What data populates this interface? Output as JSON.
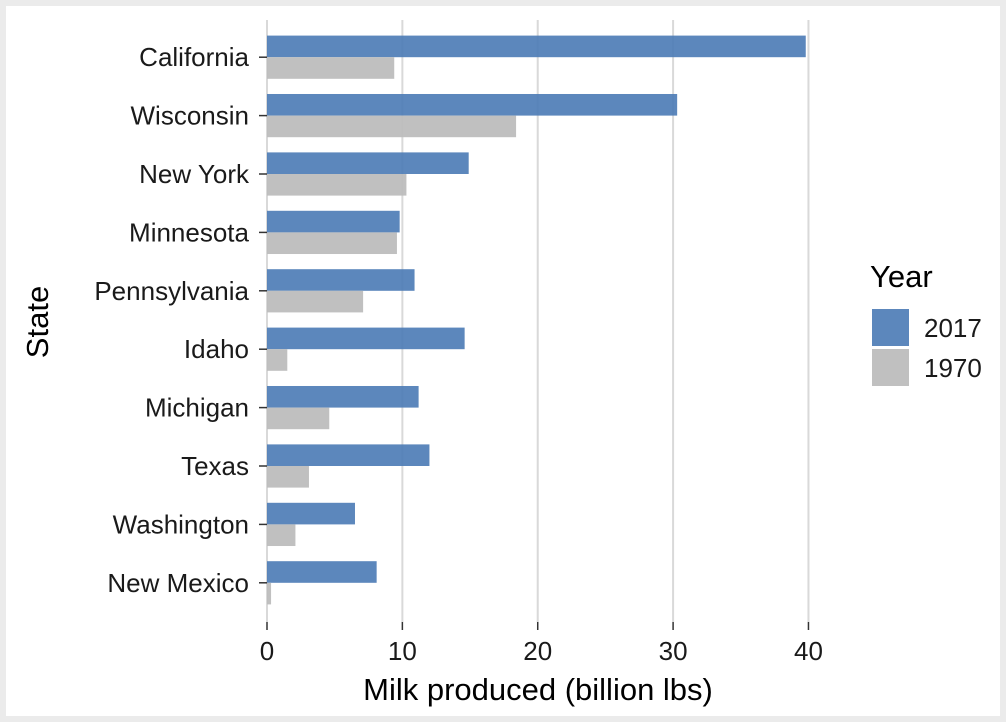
{
  "chart_data": {
    "type": "bar",
    "orientation": "horizontal",
    "xlabel": "Milk produced (billion lbs)",
    "ylabel": "State",
    "xlim": [
      0,
      41
    ],
    "xticks": [
      0,
      10,
      20,
      30,
      40
    ],
    "xtick_labels": [
      "0",
      "10",
      "20",
      "30",
      "40"
    ],
    "grid": "vertical major gridlines",
    "categories": [
      "California",
      "Wisconsin",
      "New York",
      "Minnesota",
      "Pennsylvania",
      "Idaho",
      "Michigan",
      "Texas",
      "Washington",
      "New Mexico"
    ],
    "series": [
      {
        "name": "2017",
        "color": "#4a7ab5",
        "values": [
          39.8,
          30.3,
          14.9,
          9.8,
          10.9,
          14.6,
          11.2,
          12.0,
          6.5,
          8.1
        ]
      },
      {
        "name": "1970",
        "color": "#bdbdbd",
        "values": [
          9.4,
          18.4,
          10.3,
          9.6,
          7.1,
          1.5,
          4.6,
          3.1,
          2.1,
          0.3
        ]
      }
    ],
    "legend": {
      "title": "Year",
      "position": "right"
    }
  }
}
